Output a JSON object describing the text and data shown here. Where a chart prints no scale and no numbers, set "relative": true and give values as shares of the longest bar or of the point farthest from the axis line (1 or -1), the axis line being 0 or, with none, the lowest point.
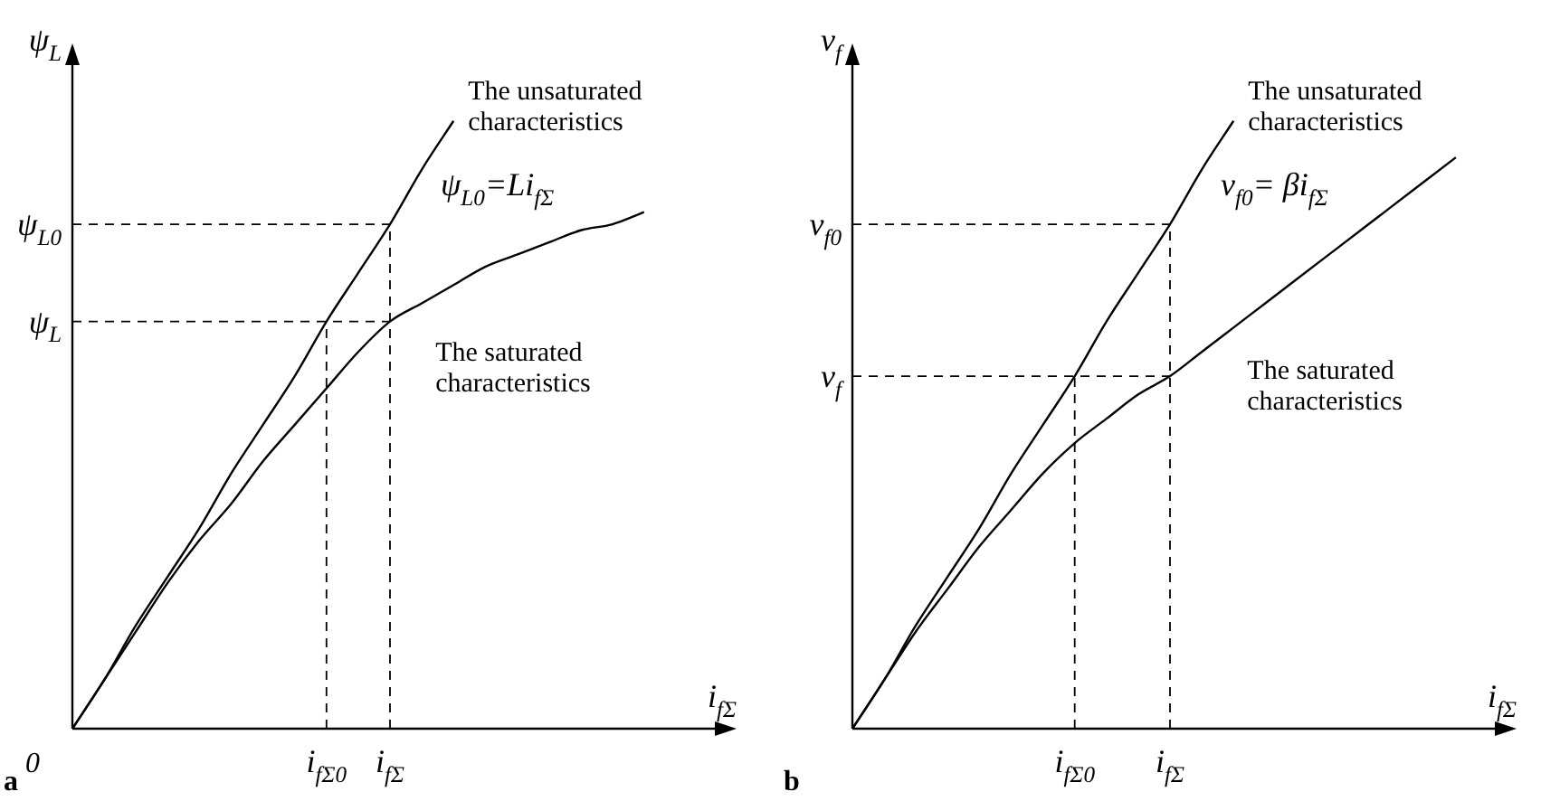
{
  "chart_data": [
    {
      "type": "line",
      "relative": true,
      "xlabel": "i$_{fΣ}$",
      "ylabel": "ψ$_{L}$",
      "line_style": "solid",
      "legend": false,
      "categories": [
        "0",
        null,
        null,
        null,
        null,
        null,
        null,
        null,
        "i$_{fΣ0}$",
        null,
        "i$_{fΣ}$",
        null,
        null,
        null,
        null,
        null,
        null,
        null,
        null,
        null,
        null
      ],
      "series": [
        {
          "name": "The unsaturated characteristics",
          "color": "#000000",
          "values": [
            0,
            0.08,
            0.17,
            0.25,
            0.33,
            0.42,
            0.5,
            0.58,
            0.67,
            0.75,
            0.83,
            0.92,
            1.0,
            null,
            null,
            null,
            null,
            null,
            null,
            null,
            null
          ]
        },
        {
          "name": "The saturated characteristics",
          "color": "#000000",
          "values": [
            0,
            0.08,
            0.16,
            0.24,
            0.31,
            0.37,
            0.44,
            0.5,
            0.56,
            0.62,
            0.67,
            0.7,
            0.73,
            0.76,
            0.78,
            0.8,
            0.82,
            0.83,
            0.85,
            null,
            null
          ]
        }
      ],
      "ref_lines": [
        {
          "axis": "x",
          "value": "i$_{fΣ0}$",
          "line_style": "dashed"
        },
        {
          "axis": "x",
          "value": "i$_{fΣ}$",
          "line_style": "dashed"
        },
        {
          "axis": "y",
          "value": 0.67,
          "label": "ψ$_{L}$",
          "line_style": "dashed"
        },
        {
          "axis": "y",
          "value": 0.83,
          "label": "ψ$_{L0}$",
          "line_style": "dashed"
        }
      ],
      "annotations": [
        {
          "text": "ψ$_{L0}$=Li$_{fΣ}$",
          "x": "i$_{fΣ}$",
          "y": 0.83
        },
        "a"
      ]
    },
    {
      "type": "line",
      "relative": true,
      "xlabel": "i$_{fΣ}$",
      "ylabel": "v$_{f}$",
      "line_style": "solid",
      "legend": false,
      "categories": [
        null,
        null,
        null,
        null,
        null,
        null,
        null,
        "i$_{fΣ0}$",
        null,
        null,
        "i$_{fΣ}$",
        null,
        null,
        null,
        null,
        null,
        null,
        null,
        null,
        null,
        null
      ],
      "series": [
        {
          "name": "The unsaturated characteristics",
          "color": "#000000",
          "values": [
            0,
            0.08,
            0.17,
            0.25,
            0.33,
            0.42,
            0.5,
            0.58,
            0.67,
            0.75,
            0.83,
            0.92,
            1.0,
            null,
            null,
            null,
            null,
            null,
            null,
            null,
            null
          ]
        },
        {
          "name": "The saturated characteristics",
          "color": "#000000",
          "values": [
            0,
            0.08,
            0.16,
            0.23,
            0.3,
            0.36,
            0.42,
            0.47,
            0.51,
            0.55,
            0.58,
            0.62,
            0.66,
            0.7,
            0.74,
            0.78,
            0.82,
            0.86,
            0.9,
            0.94,
            null
          ]
        }
      ],
      "ref_lines": [
        {
          "axis": "x",
          "value": "i$_{fΣ0}$",
          "line_style": "dashed"
        },
        {
          "axis": "x",
          "value": "i$_{fΣ}$",
          "line_style": "dashed"
        },
        {
          "axis": "y",
          "value": 0.58,
          "label": "v$_{f}$",
          "line_style": "dashed"
        },
        {
          "axis": "y",
          "value": 0.83,
          "label": "v$_{f0}$",
          "line_style": "dashed"
        }
      ],
      "annotations": [
        {
          "text": "v$_{f0}$= βi$_{fΣ}$",
          "x": "i$_{fΣ}$",
          "y": 0.83
        },
        "b"
      ]
    }
  ]
}
